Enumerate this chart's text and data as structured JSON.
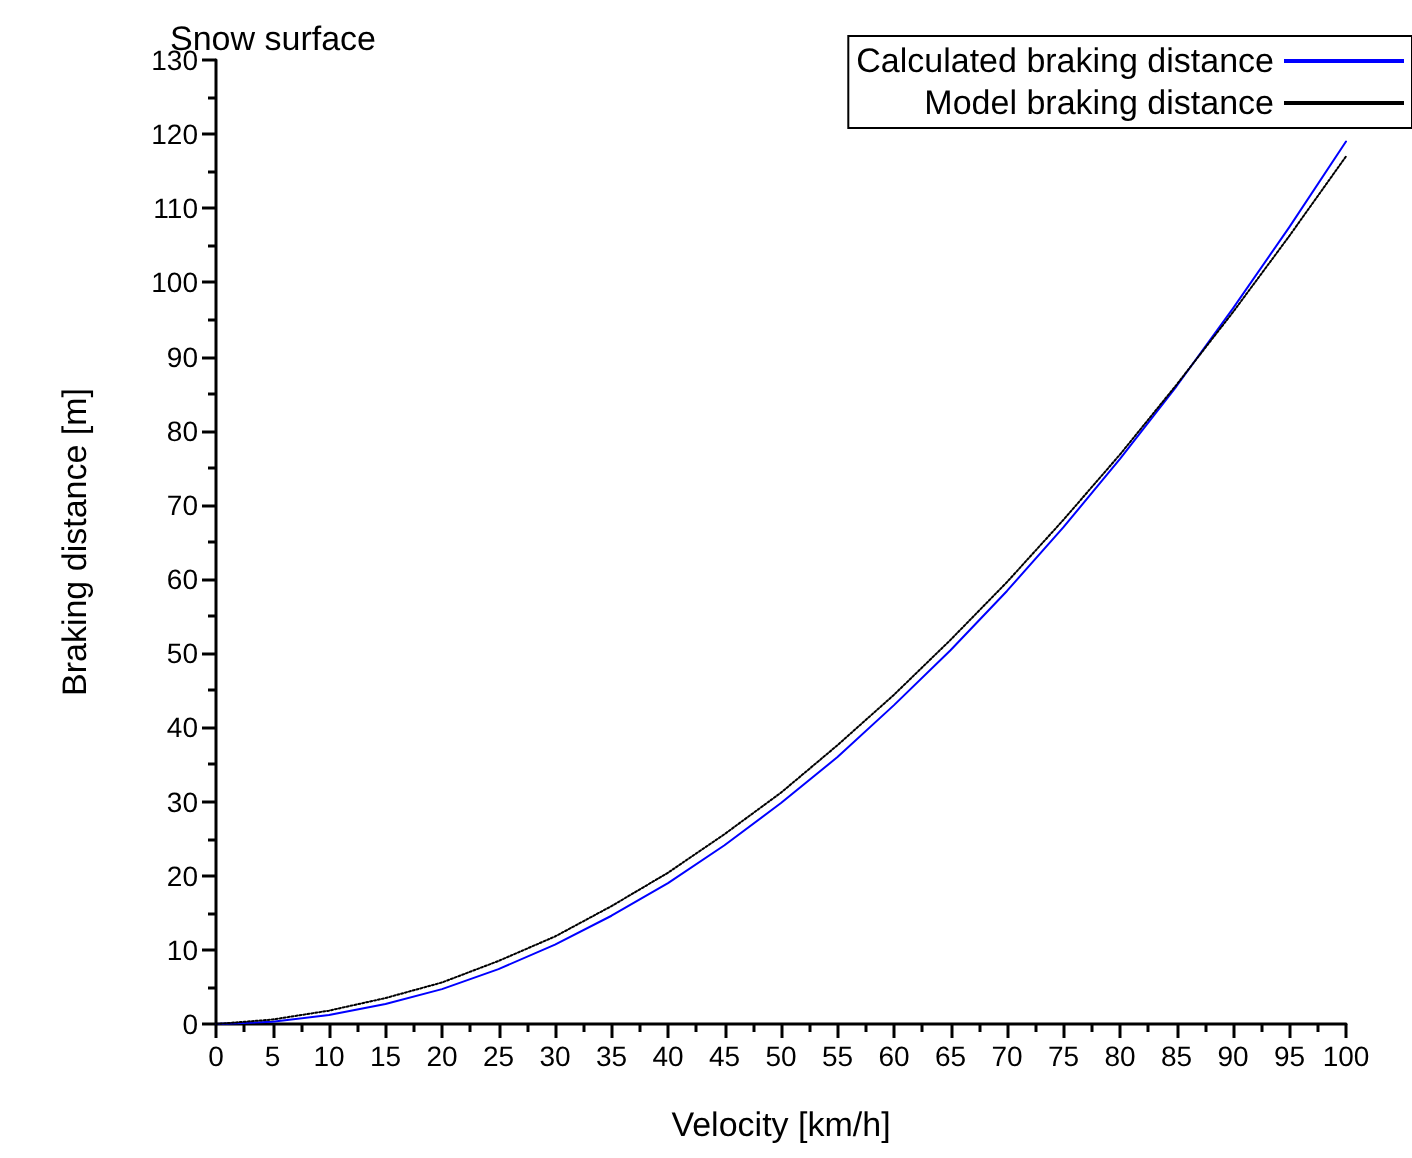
{
  "chart_data": {
    "type": "line",
    "title": "Snow surface",
    "xlabel": "Velocity [km/h]",
    "ylabel": "Braking distance [m]",
    "x": [
      0,
      5,
      10,
      15,
      20,
      25,
      30,
      35,
      40,
      45,
      50,
      55,
      60,
      65,
      70,
      75,
      80,
      85,
      90,
      95,
      100
    ],
    "series": [
      {
        "name": "Calculated braking distance",
        "color": "#0000ff",
        "line_style": "solid",
        "values": [
          0,
          0.3,
          1.2,
          2.7,
          4.7,
          7.4,
          10.7,
          14.6,
          19,
          24.1,
          29.8,
          36,
          43,
          50.4,
          58.4,
          67,
          76.2,
          86,
          96.5,
          107.5,
          119
        ]
      },
      {
        "name": "Model braking distance",
        "color": "#000000",
        "line_style": "dotted",
        "values": [
          0,
          0.6,
          1.8,
          3.5,
          5.6,
          8.5,
          11.8,
          15.9,
          20.4,
          25.6,
          31.2,
          37.6,
          44.4,
          51.8,
          59.6,
          68,
          76.8,
          86.2,
          96,
          106.3,
          117
        ]
      }
    ],
    "xlim": [
      0,
      100
    ],
    "xticks": [
      0,
      5,
      10,
      15,
      20,
      25,
      30,
      35,
      40,
      45,
      50,
      55,
      60,
      65,
      70,
      75,
      80,
      85,
      90,
      95,
      100
    ],
    "ylim": [
      0,
      130
    ],
    "yticks": [
      0,
      10,
      20,
      30,
      40,
      50,
      60,
      70,
      80,
      90,
      100,
      110,
      120,
      130
    ],
    "grid": false,
    "legend": "top right",
    "marker": "none"
  }
}
